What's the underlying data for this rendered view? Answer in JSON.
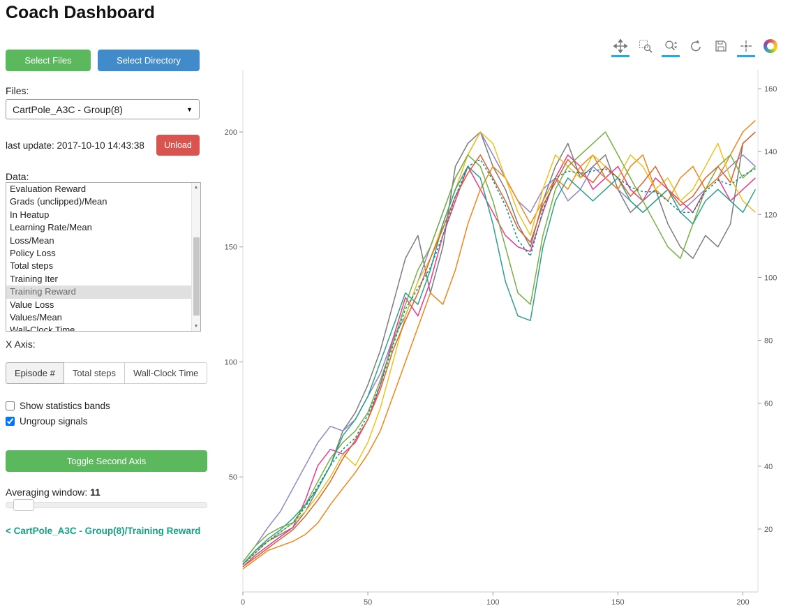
{
  "colors": {
    "green": "#5cb85c",
    "blue": "#428bca",
    "red": "#d9534f",
    "link_teal": "#16a085",
    "tool_active": "#26aae1"
  },
  "header": {
    "title": "Coach Dashboard"
  },
  "sidebar": {
    "select_files_label": "Select Files",
    "select_directory_label": "Select Directory",
    "files_label": "Files:",
    "files_selected": "CartPole_A3C - Group(8)",
    "files_dropdown_glyph": "▼",
    "last_update": "last update: 2017-10-10 14:43:38",
    "unload_label": "Unload",
    "data_label": "Data:",
    "data_items": [
      "Evaluation Reward",
      "Grads (unclipped)/Mean",
      "In Heatup",
      "Learning Rate/Mean",
      "Loss/Mean",
      "Policy Loss",
      "Total steps",
      "Training Iter",
      "Training Reward",
      "Value Loss",
      "Values/Mean",
      "Wall-Clock Time"
    ],
    "data_selected": "Training Reward",
    "x_axis_label": "X Axis:",
    "x_axis_options": [
      {
        "label": "Episode #",
        "active": true
      },
      {
        "label": "Total steps",
        "active": false
      },
      {
        "label": "Wall-Clock Time",
        "active": false
      }
    ],
    "checkboxes": [
      {
        "label": "Show statistics bands",
        "checked": false
      },
      {
        "label": "Ungroup signals",
        "checked": true
      }
    ],
    "toggle_second_axis_label": "Toggle Second Axis",
    "averaging_window_label": "Averaging window:",
    "averaging_window_value": "11",
    "breadcrumb_link": "< CartPole_A3C - Group(8)/Training Reward"
  },
  "toolbar": {
    "tools": [
      {
        "name": "pan",
        "active": true
      },
      {
        "name": "box-zoom",
        "active": false
      },
      {
        "name": "wheel-zoom",
        "active": true
      },
      {
        "name": "reset",
        "active": false
      },
      {
        "name": "save",
        "active": false
      },
      {
        "name": "hover",
        "active": true
      }
    ]
  },
  "chart_data": {
    "type": "line",
    "title": "",
    "xlabel": "",
    "ylabel": "",
    "grid": false,
    "legend": "none",
    "x_ticks": [
      0,
      50,
      100,
      150,
      200
    ],
    "left_y_ticks": [
      50,
      100,
      150,
      200
    ],
    "right_y_ticks": [
      20,
      40,
      60,
      80,
      100,
      120,
      140,
      160
    ],
    "x_range": [
      0,
      206
    ],
    "left_y_range": [
      0,
      227
    ],
    "right_y_range": [
      0,
      166
    ],
    "x": [
      0,
      5,
      10,
      15,
      20,
      25,
      30,
      35,
      40,
      45,
      50,
      55,
      60,
      65,
      70,
      75,
      80,
      85,
      90,
      95,
      100,
      105,
      110,
      115,
      120,
      125,
      130,
      135,
      140,
      145,
      150,
      155,
      160,
      165,
      170,
      175,
      180,
      185,
      190,
      195,
      200,
      205
    ],
    "series": [
      {
        "name": "signal-1",
        "color": "#7b7b7b",
        "dash": "",
        "values": [
          12,
          18,
          22,
          25,
          28,
          35,
          45,
          55,
          70,
          78,
          90,
          105,
          125,
          145,
          155,
          130,
          150,
          185,
          195,
          200,
          185,
          175,
          160,
          150,
          170,
          185,
          195,
          180,
          185,
          190,
          175,
          165,
          170,
          175,
          160,
          150,
          145,
          155,
          150,
          160,
          195,
          200
        ]
      },
      {
        "name": "signal-2",
        "color": "#8f84c8",
        "dash": "",
        "values": [
          13,
          20,
          28,
          35,
          45,
          55,
          65,
          72,
          70,
          75,
          85,
          95,
          110,
          120,
          135,
          150,
          165,
          180,
          190,
          200,
          190,
          180,
          170,
          165,
          175,
          180,
          170,
          175,
          185,
          180,
          175,
          170,
          165,
          170,
          175,
          165,
          170,
          175,
          180,
          185,
          190,
          185
        ]
      },
      {
        "name": "signal-3",
        "color": "#e8398f",
        "dash": "",
        "values": [
          11,
          16,
          20,
          24,
          28,
          40,
          55,
          62,
          60,
          65,
          75,
          90,
          110,
          128,
          120,
          135,
          155,
          170,
          185,
          175,
          165,
          155,
          150,
          148,
          165,
          180,
          190,
          185,
          175,
          180,
          185,
          175,
          170,
          180,
          175,
          170,
          165,
          175,
          180,
          170,
          175,
          180
        ]
      },
      {
        "name": "signal-4",
        "color": "#f08519",
        "dash": "",
        "values": [
          10,
          14,
          18,
          20,
          22,
          25,
          30,
          38,
          45,
          52,
          60,
          70,
          85,
          100,
          115,
          130,
          125,
          140,
          160,
          175,
          185,
          180,
          170,
          160,
          170,
          180,
          175,
          185,
          190,
          180,
          175,
          185,
          190,
          175,
          170,
          180,
          185,
          175,
          180,
          190,
          200,
          205
        ]
      },
      {
        "name": "signal-5",
        "color": "#edc120",
        "dash": "",
        "values": [
          12,
          17,
          22,
          26,
          30,
          35,
          42,
          50,
          60,
          55,
          65,
          80,
          100,
          120,
          135,
          145,
          160,
          175,
          190,
          200,
          195,
          180,
          165,
          155,
          175,
          190,
          185,
          180,
          190,
          185,
          180,
          190,
          185,
          175,
          180,
          170,
          175,
          185,
          195,
          180,
          170,
          165
        ]
      },
      {
        "name": "signal-6",
        "color": "#76b041",
        "dash": "",
        "values": [
          13,
          20,
          25,
          28,
          30,
          38,
          48,
          58,
          65,
          70,
          78,
          92,
          108,
          125,
          140,
          150,
          165,
          180,
          190,
          185,
          170,
          150,
          130,
          125,
          155,
          175,
          185,
          190,
          195,
          200,
          190,
          180,
          170,
          160,
          150,
          145,
          160,
          175,
          185,
          190,
          180,
          185
        ]
      },
      {
        "name": "signal-7",
        "color": "#2ca089",
        "dash": "",
        "values": [
          12,
          18,
          23,
          27,
          32,
          38,
          45,
          55,
          68,
          75,
          85,
          100,
          115,
          130,
          125,
          140,
          160,
          175,
          185,
          180,
          160,
          135,
          120,
          118,
          150,
          170,
          180,
          175,
          170,
          175,
          180,
          170,
          165,
          170,
          175,
          165,
          160,
          170,
          175,
          170,
          165,
          175
        ]
      },
      {
        "name": "signal-8",
        "color": "#d9622b",
        "dash": "",
        "values": [
          11,
          15,
          19,
          23,
          27,
          33,
          40,
          48,
          58,
          66,
          75,
          88,
          105,
          118,
          130,
          145,
          158,
          172,
          182,
          190,
          180,
          170,
          158,
          152,
          168,
          178,
          188,
          182,
          178,
          185,
          180,
          172,
          178,
          185,
          175,
          168,
          172,
          180,
          185,
          178,
          195,
          200
        ]
      },
      {
        "name": "mean",
        "color": "#008b8b",
        "dash": "3,3",
        "values": [
          12,
          17,
          22,
          26,
          30,
          37,
          46,
          55,
          62,
          67,
          77,
          90,
          107,
          123,
          132,
          141,
          155,
          172,
          185,
          188,
          179,
          168,
          153,
          146,
          166,
          180,
          183,
          182,
          183,
          184,
          180,
          176,
          174,
          174,
          170,
          165,
          165,
          174,
          179,
          177,
          181,
          184
        ]
      }
    ]
  }
}
